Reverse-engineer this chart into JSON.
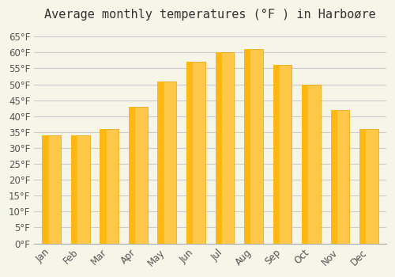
{
  "title": "Average monthly temperatures (°F ) in Harboøre",
  "months": [
    "Jan",
    "Feb",
    "Mar",
    "Apr",
    "May",
    "Jun",
    "Jul",
    "Aug",
    "Sep",
    "Oct",
    "Nov",
    "Dec"
  ],
  "values": [
    34,
    34,
    36,
    43,
    51,
    57,
    60,
    61,
    56,
    50,
    42,
    36
  ],
  "bar_color_top": "#FDB813",
  "bar_color_bottom": "#FFC84A",
  "ylim": [
    0,
    68
  ],
  "yticks": [
    0,
    5,
    10,
    15,
    20,
    25,
    30,
    35,
    40,
    45,
    50,
    55,
    60,
    65
  ],
  "ytick_labels": [
    "0°F",
    "5°F",
    "10°F",
    "15°F",
    "20°F",
    "25°F",
    "30°F",
    "35°F",
    "40°F",
    "45°F",
    "50°F",
    "55°F",
    "60°F",
    "65°F"
  ],
  "background_color": "#f5f5e8",
  "grid_color": "#cccccc",
  "title_fontsize": 11,
  "tick_fontsize": 8.5,
  "bar_edge_color": "#E8A000",
  "bar_width": 0.65
}
